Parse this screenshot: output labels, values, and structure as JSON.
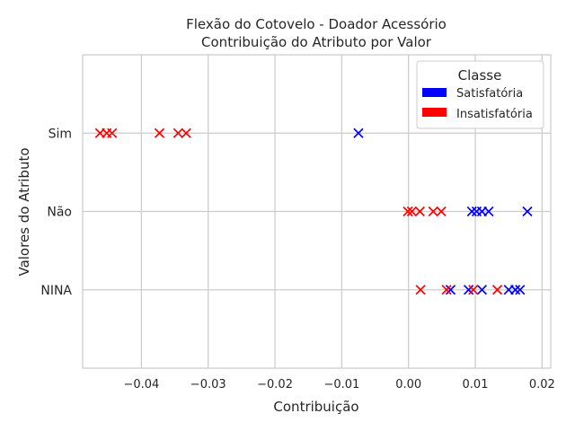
{
  "chart_data": {
    "type": "scatter",
    "title": "Flexão do Cotovelo - Doador Acessório",
    "subtitle": "Contribuição do Atributo por Valor",
    "xlabel": "Contribuição",
    "ylabel": "Valores do Atributo",
    "categories": [
      "Sim",
      "Não",
      "NINA"
    ],
    "xlim": [
      -0.0488,
      0.0213
    ],
    "xticks": [
      -0.04,
      -0.03,
      -0.02,
      -0.01,
      0.0,
      0.01,
      0.02
    ],
    "xtick_labels": [
      "−0.04",
      "−0.03",
      "−0.02",
      "−0.01",
      "0.00",
      "0.01",
      "0.02"
    ],
    "grid": true,
    "legend": {
      "title": "Classe",
      "position": "top-right",
      "entries": [
        {
          "label": "Satisfatória",
          "color": "#0000ff"
        },
        {
          "label": "Insatisfatória",
          "color": "#ff0000"
        }
      ]
    },
    "series": [
      {
        "name": "Satisfatória",
        "color": "#0000ff",
        "points": [
          {
            "category": "Sim",
            "x": -0.0075
          },
          {
            "category": "Não",
            "x": 0.0095
          },
          {
            "category": "Não",
            "x": 0.0102
          },
          {
            "category": "Não",
            "x": 0.011
          },
          {
            "category": "Não",
            "x": 0.012
          },
          {
            "category": "Não",
            "x": 0.0178
          },
          {
            "category": "NINA",
            "x": 0.0063
          },
          {
            "category": "NINA",
            "x": 0.009
          },
          {
            "category": "NINA",
            "x": 0.011
          },
          {
            "category": "NINA",
            "x": 0.015
          },
          {
            "category": "NINA",
            "x": 0.016
          },
          {
            "category": "NINA",
            "x": 0.0167
          }
        ]
      },
      {
        "name": "Insatisfatória",
        "color": "#ff0000",
        "points": [
          {
            "category": "Sim",
            "x": -0.0462
          },
          {
            "category": "Sim",
            "x": -0.0452
          },
          {
            "category": "Sim",
            "x": -0.0444
          },
          {
            "category": "Sim",
            "x": -0.0373
          },
          {
            "category": "Sim",
            "x": -0.0345
          },
          {
            "category": "Sim",
            "x": -0.0333
          },
          {
            "category": "Não",
            "x": -0.0001
          },
          {
            "category": "Não",
            "x": 0.0005
          },
          {
            "category": "Não",
            "x": 0.0017
          },
          {
            "category": "Não",
            "x": 0.0037
          },
          {
            "category": "Não",
            "x": 0.0049
          },
          {
            "category": "NINA",
            "x": 0.0018
          },
          {
            "category": "NINA",
            "x": 0.0057
          },
          {
            "category": "NINA",
            "x": 0.0097
          },
          {
            "category": "NINA",
            "x": 0.0133
          }
        ]
      }
    ]
  }
}
